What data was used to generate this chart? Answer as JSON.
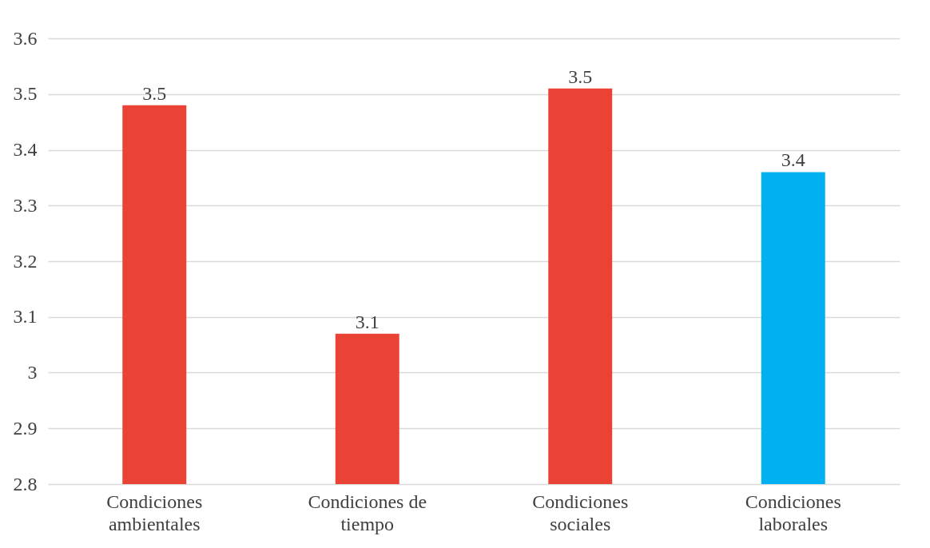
{
  "chart_data": {
    "type": "bar",
    "categories": [
      "Condiciones ambientales",
      "Condiciones de tiempo",
      "Condiciones sociales",
      "Condiciones laborales"
    ],
    "values": [
      3.48,
      3.07,
      3.51,
      3.36
    ],
    "colors": [
      "#ea4335",
      "#ea4335",
      "#ea4335",
      "#00b0f0"
    ],
    "value_labels": [
      "3.5",
      "3.1",
      "3.5",
      "3.4"
    ],
    "ylim": [
      2.8,
      3.6
    ],
    "yticks": [
      2.8,
      2.9,
      3,
      3.1,
      3.2,
      3.3,
      3.4,
      3.5,
      3.6
    ],
    "grid": true
  }
}
